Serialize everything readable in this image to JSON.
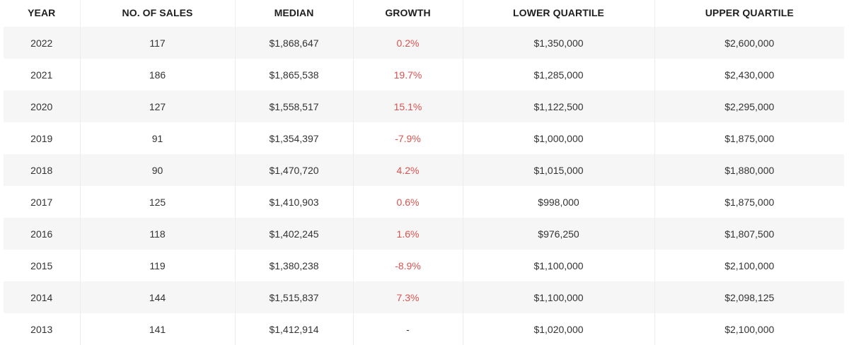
{
  "table": {
    "headers": [
      "YEAR",
      "NO. OF SALES",
      "MEDIAN",
      "GROWTH",
      "LOWER QUARTILE",
      "UPPER QUARTILE"
    ],
    "rows": [
      {
        "year": "2022",
        "sales": "117",
        "median": "$1,868,647",
        "growth": "0.2%",
        "lower": "$1,350,000",
        "upper": "$2,600,000"
      },
      {
        "year": "2021",
        "sales": "186",
        "median": "$1,865,538",
        "growth": "19.7%",
        "lower": "$1,285,000",
        "upper": "$2,430,000"
      },
      {
        "year": "2020",
        "sales": "127",
        "median": "$1,558,517",
        "growth": "15.1%",
        "lower": "$1,122,500",
        "upper": "$2,295,000"
      },
      {
        "year": "2019",
        "sales": "91",
        "median": "$1,354,397",
        "growth": "-7.9%",
        "lower": "$1,000,000",
        "upper": "$1,875,000"
      },
      {
        "year": "2018",
        "sales": "90",
        "median": "$1,470,720",
        "growth": "4.2%",
        "lower": "$1,015,000",
        "upper": "$1,880,000"
      },
      {
        "year": "2017",
        "sales": "125",
        "median": "$1,410,903",
        "growth": "0.6%",
        "lower": "$998,000",
        "upper": "$1,875,000"
      },
      {
        "year": "2016",
        "sales": "118",
        "median": "$1,402,245",
        "growth": "1.6%",
        "lower": "$976,250",
        "upper": "$1,807,500"
      },
      {
        "year": "2015",
        "sales": "119",
        "median": "$1,380,238",
        "growth": "-8.9%",
        "lower": "$1,100,000",
        "upper": "$2,100,000"
      },
      {
        "year": "2014",
        "sales": "144",
        "median": "$1,515,837",
        "growth": "7.3%",
        "lower": "$1,100,000",
        "upper": "$2,098,125"
      },
      {
        "year": "2013",
        "sales": "141",
        "median": "$1,412,914",
        "growth": "-",
        "lower": "$1,020,000",
        "upper": "$2,100,000"
      }
    ]
  },
  "colors": {
    "growth_text": "#d9534f",
    "stripe": "#f6f6f6"
  }
}
